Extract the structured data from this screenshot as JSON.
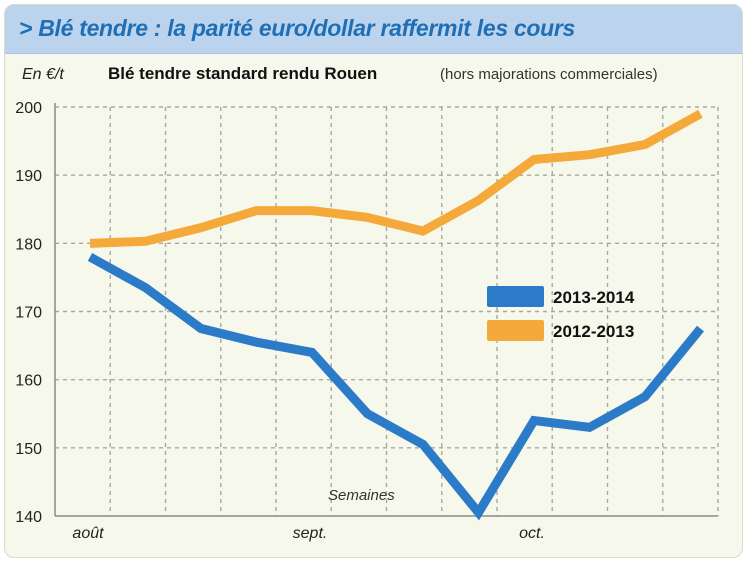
{
  "header": {
    "title": "> Blé tendre : la parité euro/dollar raffermit les cours"
  },
  "chart_data": {
    "type": "line",
    "unit_label": "En €/t",
    "subtitle_bold": "Blé tendre standard rendu Rouen",
    "subtitle_note": "(hors majorations commerciales)",
    "xlabel": "Semaines",
    "month_labels": [
      {
        "label": "août",
        "index": 0
      },
      {
        "label": "sept.",
        "index": 4
      },
      {
        "label": "oct.",
        "index": 8
      }
    ],
    "ylim": [
      140,
      200
    ],
    "yticks": [
      140,
      150,
      160,
      170,
      180,
      190,
      200
    ],
    "grid": true,
    "legend_position": "center-right",
    "series": [
      {
        "name": "2013-2014",
        "color": "#2b7bc9",
        "values": [
          178,
          173.5,
          167.5,
          165.5,
          164,
          155,
          150.5,
          140.5,
          154,
          153,
          157.5,
          167.5
        ]
      },
      {
        "name": "2012-2013",
        "color": "#f5a93a",
        "values": [
          180,
          180.3,
          182.3,
          184.8,
          184.8,
          183.8,
          181.8,
          186.3,
          192.3,
          193,
          194.5,
          199
        ]
      }
    ]
  }
}
